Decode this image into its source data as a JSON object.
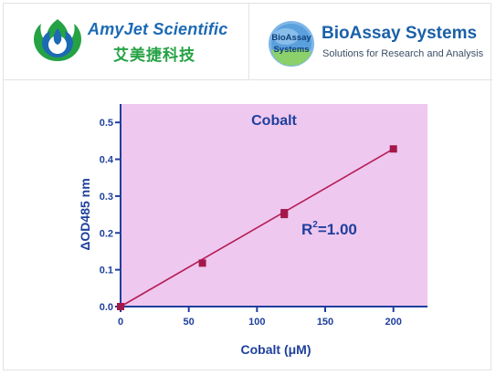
{
  "header": {
    "amyjet": {
      "name": "AmyJet Scientific",
      "name_cn": "艾美捷科技",
      "brand_color": "#1c6ab4",
      "accent_color": "#25a244"
    },
    "bioassay": {
      "badge_line1": "BioAssay",
      "badge_line2": "Systems",
      "name": "BioAssay Systems",
      "tagline": "Solutions for Research and Analysis",
      "brand_color": "#1a60a8"
    }
  },
  "chart_data": {
    "type": "scatter",
    "title": "Cobalt",
    "xlabel": "Cobalt (μM)",
    "ylabel": "ΔOD485 nm",
    "annotation_base": "R",
    "annotation_sup": "2",
    "annotation_rest": "=1.00",
    "xlim": [
      0,
      225
    ],
    "ylim": [
      0,
      0.55
    ],
    "xticks": [
      0,
      50,
      100,
      150,
      200
    ],
    "xtick_labels": [
      "0",
      "50",
      "100",
      "150",
      "200"
    ],
    "yticks": [
      0.0,
      0.1,
      0.2,
      0.3,
      0.4,
      0.5
    ],
    "ytick_labels": [
      "0.0",
      "0.1",
      "0.2",
      "0.3",
      "0.4",
      "0.5"
    ],
    "points": [
      {
        "x": 0,
        "y": 0.0
      },
      {
        "x": 60,
        "y": 0.118
      },
      {
        "x": 120,
        "y": 0.25
      },
      {
        "x": 120,
        "y": 0.255
      },
      {
        "x": 200,
        "y": 0.428
      }
    ],
    "fit_line": {
      "x": [
        0,
        200
      ],
      "y": [
        0.0,
        0.428
      ]
    },
    "grid": false,
    "colors": {
      "plot_background": "#efc8ef",
      "marker": "#a3184a",
      "line": "#b51e56",
      "text": "#1f3f9c",
      "axis": "#1f3f9c"
    }
  }
}
